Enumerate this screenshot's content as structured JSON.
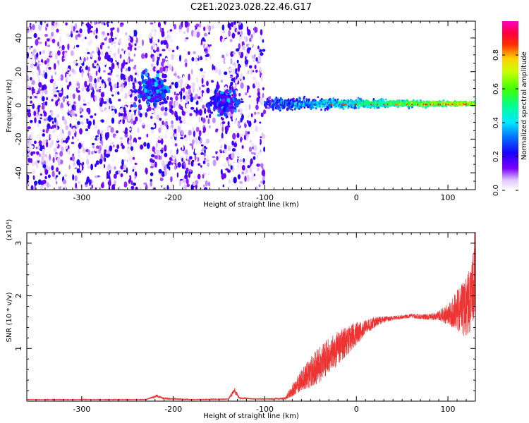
{
  "figure_title": "C2E1.2023.028.22.46.G17",
  "chart_data": [
    {
      "type": "heatmap",
      "panel": "spectrogram",
      "xlabel": "Height of straight line (km)",
      "ylabel": "Frequency (Hz)",
      "xlim": [
        -360,
        130
      ],
      "ylim": [
        -50,
        50
      ],
      "xticks": [
        -300,
        -200,
        -100,
        0,
        100
      ],
      "yticks": [
        -40,
        -20,
        0,
        20,
        40
      ],
      "xtick_labels": [
        "-300",
        "-200",
        "-100",
        "0",
        "100"
      ],
      "ytick_labels": [
        "-40",
        "-20",
        "0",
        "20",
        "40"
      ],
      "colorbar": {
        "label": "Normalized spectral amplitude",
        "range": [
          0,
          1
        ],
        "ticks": [
          0.0,
          0.2,
          0.4,
          0.6,
          0.8
        ],
        "tick_labels": [
          "0.0",
          "0.2",
          "0.4",
          "0.6",
          "0.8"
        ],
        "colormap": "rainbow (white-violet-blue-cyan-green-yellow-red-magenta)"
      },
      "regions": [
        {
          "x_range": [
            -360,
            -100
          ],
          "freq_range": [
            -50,
            50
          ],
          "amplitude_range": [
            0.0,
            0.25
          ],
          "description": "diffuse noise"
        },
        {
          "x_range": [
            -245,
            -200
          ],
          "freq_range": [
            -3,
            25
          ],
          "amplitude_range": [
            0.1,
            0.4
          ],
          "description": "cluster"
        },
        {
          "x_range": [
            -165,
            -125
          ],
          "freq_range": [
            -8,
            12
          ],
          "amplitude_range": [
            0.1,
            0.4
          ],
          "description": "cluster"
        },
        {
          "x_range": [
            -100,
            130
          ],
          "center_freq": 1,
          "freq_halfwidth": [
            8,
            2
          ],
          "amplitude_range": [
            0.3,
            1.0
          ],
          "description": "narrow tone near 0 Hz"
        }
      ]
    },
    {
      "type": "line",
      "panel": "snr",
      "xlabel": "Height of straight line (km)",
      "ylabel": "SNR (10 * v/v)",
      "y_multiplier": "(x10⁴)",
      "xlim": [
        -360,
        130
      ],
      "ylim": [
        0,
        3.2
      ],
      "xticks": [
        -300,
        -200,
        -100,
        0,
        100
      ],
      "yticks": [
        1,
        2,
        3
      ],
      "xtick_labels": [
        "-300",
        "-200",
        "-100",
        "0",
        "100"
      ],
      "ytick_labels": [
        "1",
        "2",
        "3"
      ],
      "color": "#ee3333",
      "series": [
        {
          "x": [
            -360,
            -300,
            -230,
            -218,
            -210,
            -180,
            -140,
            -133,
            -128,
            -110,
            -100,
            -78,
            -70,
            -60,
            -50,
            -40,
            -30,
            -20,
            -10,
            0,
            10,
            20,
            30,
            40,
            50,
            60,
            70,
            80,
            90,
            100,
            110,
            120,
            125,
            130
          ],
          "values": [
            0.03,
            0.03,
            0.03,
            0.1,
            0.05,
            0.03,
            0.04,
            0.2,
            0.06,
            0.04,
            0.04,
            0.05,
            0.2,
            0.4,
            0.55,
            0.7,
            0.85,
            1.0,
            1.15,
            1.28,
            1.4,
            1.5,
            1.55,
            1.58,
            1.6,
            1.62,
            1.6,
            1.6,
            1.62,
            1.65,
            1.7,
            1.8,
            2.0,
            2.4
          ],
          "noise": [
            0.005,
            0.005,
            0.005,
            0.03,
            0.02,
            0.005,
            0.01,
            0.06,
            0.02,
            0.01,
            0.01,
            0.02,
            0.12,
            0.2,
            0.3,
            0.35,
            0.35,
            0.33,
            0.28,
            0.22,
            0.15,
            0.1,
            0.06,
            0.04,
            0.04,
            0.04,
            0.05,
            0.06,
            0.1,
            0.2,
            0.4,
            0.6,
            0.7,
            0.7
          ]
        }
      ]
    }
  ]
}
